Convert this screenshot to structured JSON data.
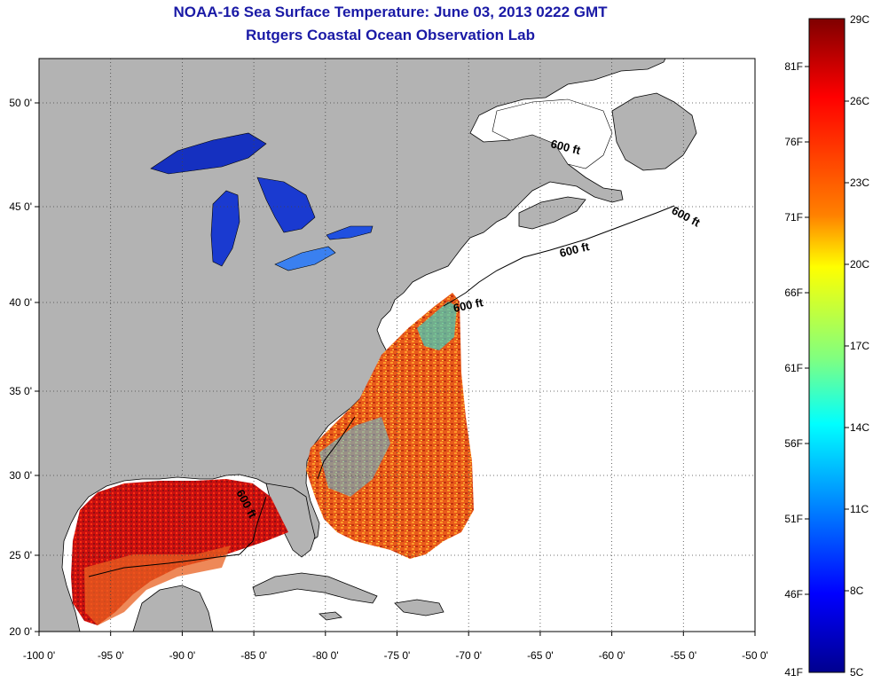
{
  "title": "NOAA-16 Sea Surface Temperature:  June 03, 2013 0222 GMT",
  "subtitle": "Rutgers Coastal Ocean Observation Lab",
  "x_ticks": [
    "-100 0'",
    "-95 0'",
    "-90 0'",
    "-85 0'",
    "-80 0'",
    "-75 0'",
    "-70 0'",
    "-65 0'",
    "-60 0'",
    "-55 0'",
    "-50 0'"
  ],
  "y_ticks": [
    "50 0'",
    "45 0'",
    "40 0'",
    "35 0'",
    "30 0'",
    "25 0'",
    "20 0'"
  ],
  "colorbar": {
    "celsius": [
      "29C",
      "26C",
      "23C",
      "20C",
      "17C",
      "14C",
      "11C",
      "8C",
      "5C"
    ],
    "fahrenheit": [
      "81F",
      "76F",
      "71F",
      "66F",
      "61F",
      "56F",
      "51F",
      "46F",
      "41F"
    ],
    "colors": [
      "#7f0000",
      "#ff0000",
      "#ff8000",
      "#ffff00",
      "#80ff80",
      "#00ffff",
      "#0080ff",
      "#0000ff",
      "#00008f"
    ]
  },
  "contour_labels": [
    "600 ft",
    "600 ft",
    "600 ft",
    "600 ft",
    "600 ft"
  ],
  "colors": {
    "land": "#b3b3b3",
    "title": "#1a1aa6",
    "ocean_nodata": "#ffffff"
  }
}
